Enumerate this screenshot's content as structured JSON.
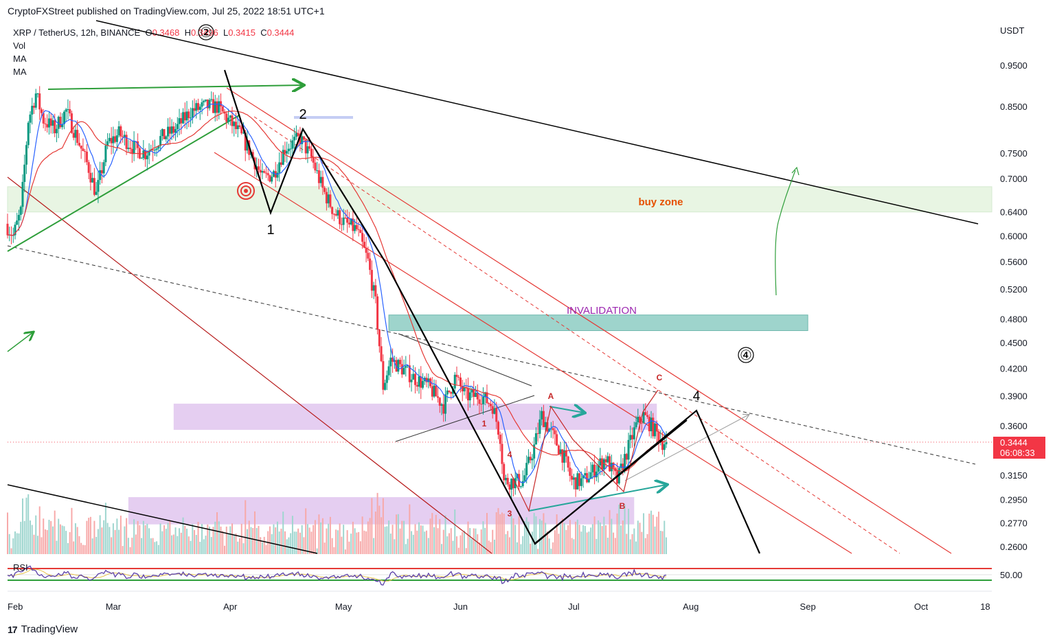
{
  "header": {
    "publisher_line": "CryptoFXStreet published on TradingView.com, Jul 25, 2022 18:51 UTC+1"
  },
  "legend": {
    "symbol": "XRP / TetherUS, 12h, BINANCE",
    "open_label": "O",
    "open": "0.3468",
    "high_label": "H",
    "high": "0.3496",
    "low_label": "L",
    "low": "0.3415",
    "close_label": "C",
    "close": "0.3444",
    "indicators": [
      "Vol",
      "MA",
      "MA"
    ]
  },
  "price_tag": {
    "price": "0.3444",
    "countdown": "06:08:33"
  },
  "footer": {
    "brand": "TradingView",
    "brand_mark": "17"
  },
  "colors": {
    "up": "#089981",
    "down": "#f23645",
    "ma_fast": "#2962ff",
    "ma_slow": "#e53935",
    "channel": "#e53935",
    "trend_black": "#000000",
    "buy_zone": "#e8f5e3",
    "invalidation": "#9ed4cc",
    "purple_zone": "#e1c5ee",
    "rsi_line": "#5b3fa8",
    "rsi_ma": "#e8c24a"
  },
  "chart_data": {
    "type": "candlestick",
    "title": "XRP / TetherUS, 12h, BINANCE",
    "y_axis_unit": "USDT",
    "y_scale": "log",
    "y_ticks": [
      0.95,
      0.85,
      0.75,
      0.7,
      0.64,
      0.6,
      0.56,
      0.52,
      0.48,
      0.45,
      0.42,
      0.39,
      0.36,
      0.315,
      0.295,
      0.277,
      0.26
    ],
    "y_tick_labels": [
      "0.9500",
      "0.8500",
      "0.7500",
      "0.7000",
      "0.6400",
      "0.6000",
      "0.5600",
      "0.5200",
      "0.4800",
      "0.4500",
      "0.4200",
      "0.3900",
      "0.3600",
      "0.3150",
      "0.2950",
      "0.2770",
      "0.2600"
    ],
    "x_tick_labels": [
      "Feb",
      "Mar",
      "Apr",
      "May",
      "Jun",
      "Jul",
      "Aug",
      "Sep",
      "Oct",
      "18"
    ],
    "x_ticks": [
      "2022-02-01",
      "2022-03-01",
      "2022-04-01",
      "2022-05-01",
      "2022-06-01",
      "2022-07-01",
      "2022-08-01",
      "2022-09-01",
      "2022-10-01",
      "2022-10-18"
    ],
    "last_price": 0.3444,
    "price_path": [
      [
        "2022-02-01",
        0.62
      ],
      [
        "2022-02-03",
        0.6
      ],
      [
        "2022-02-05",
        0.64
      ],
      [
        "2022-02-07",
        0.82
      ],
      [
        "2022-02-09",
        0.88
      ],
      [
        "2022-02-11",
        0.82
      ],
      [
        "2022-02-14",
        0.8
      ],
      [
        "2022-02-17",
        0.84
      ],
      [
        "2022-02-20",
        0.78
      ],
      [
        "2022-02-23",
        0.72
      ],
      [
        "2022-02-25",
        0.67
      ],
      [
        "2022-02-28",
        0.77
      ],
      [
        "2022-03-03",
        0.79
      ],
      [
        "2022-03-07",
        0.76
      ],
      [
        "2022-03-10",
        0.75
      ],
      [
        "2022-03-14",
        0.78
      ],
      [
        "2022-03-18",
        0.8
      ],
      [
        "2022-03-22",
        0.84
      ],
      [
        "2022-03-26",
        0.85
      ],
      [
        "2022-03-29",
        0.85
      ],
      [
        "2022-04-01",
        0.82
      ],
      [
        "2022-04-04",
        0.79
      ],
      [
        "2022-04-07",
        0.75
      ],
      [
        "2022-04-10",
        0.7
      ],
      [
        "2022-04-13",
        0.71
      ],
      [
        "2022-04-16",
        0.76
      ],
      [
        "2022-04-20",
        0.78
      ],
      [
        "2022-04-23",
        0.74
      ],
      [
        "2022-04-26",
        0.68
      ],
      [
        "2022-04-29",
        0.64
      ],
      [
        "2022-05-02",
        0.62
      ],
      [
        "2022-05-05",
        0.61
      ],
      [
        "2022-05-08",
        0.56
      ],
      [
        "2022-05-10",
        0.5
      ],
      [
        "2022-05-12",
        0.4
      ],
      [
        "2022-05-14",
        0.43
      ],
      [
        "2022-05-17",
        0.42
      ],
      [
        "2022-05-20",
        0.41
      ],
      [
        "2022-05-24",
        0.4
      ],
      [
        "2022-05-28",
        0.38
      ],
      [
        "2022-05-31",
        0.41
      ],
      [
        "2022-06-03",
        0.39
      ],
      [
        "2022-06-07",
        0.39
      ],
      [
        "2022-06-10",
        0.38
      ],
      [
        "2022-06-12",
        0.35
      ],
      [
        "2022-06-13",
        0.31
      ],
      [
        "2022-06-15",
        0.31
      ],
      [
        "2022-06-18",
        0.31
      ],
      [
        "2022-06-21",
        0.34
      ],
      [
        "2022-06-23",
        0.37
      ],
      [
        "2022-06-26",
        0.35
      ],
      [
        "2022-06-29",
        0.33
      ],
      [
        "2022-07-01",
        0.31
      ],
      [
        "2022-07-04",
        0.31
      ],
      [
        "2022-07-07",
        0.32
      ],
      [
        "2022-07-10",
        0.33
      ],
      [
        "2022-07-13",
        0.31
      ],
      [
        "2022-07-15",
        0.33
      ],
      [
        "2022-07-18",
        0.36
      ],
      [
        "2022-07-20",
        0.37
      ],
      [
        "2022-07-22",
        0.36
      ],
      [
        "2022-07-25",
        0.3444
      ]
    ],
    "zones": [
      {
        "label": "buy zone",
        "from": 0.64,
        "to": 0.685
      },
      {
        "label": "INVALIDATION",
        "from": 0.465,
        "to": 0.485
      }
    ],
    "wave_labels": [
      {
        "text": "1",
        "date": "2022-04-10",
        "price": 0.6
      },
      {
        "text": "2",
        "date": "2022-04-18",
        "price": 0.82
      },
      {
        "text": "4",
        "date": "2022-08-01",
        "price": 0.385
      },
      {
        "text": "④",
        "date": "2022-08-15",
        "price": 0.435
      },
      {
        "text": "②",
        "date": "2022-03-31",
        "price": 1.01
      },
      {
        "text": "A",
        "date": "2022-06-23",
        "price": 0.385
      },
      {
        "text": "B",
        "date": "2022-07-13",
        "price": 0.29
      },
      {
        "text": "C",
        "date": "2022-07-22",
        "price": 0.405
      },
      {
        "text": "1",
        "date": "2022-06-11",
        "price": 0.352
      },
      {
        "text": "3",
        "date": "2022-06-12",
        "price": 0.29
      },
      {
        "text": "4",
        "date": "2022-06-12",
        "price": 0.33
      }
    ],
    "rsi": {
      "label": "RSI",
      "level_label": "50.00",
      "level": 50
    }
  }
}
